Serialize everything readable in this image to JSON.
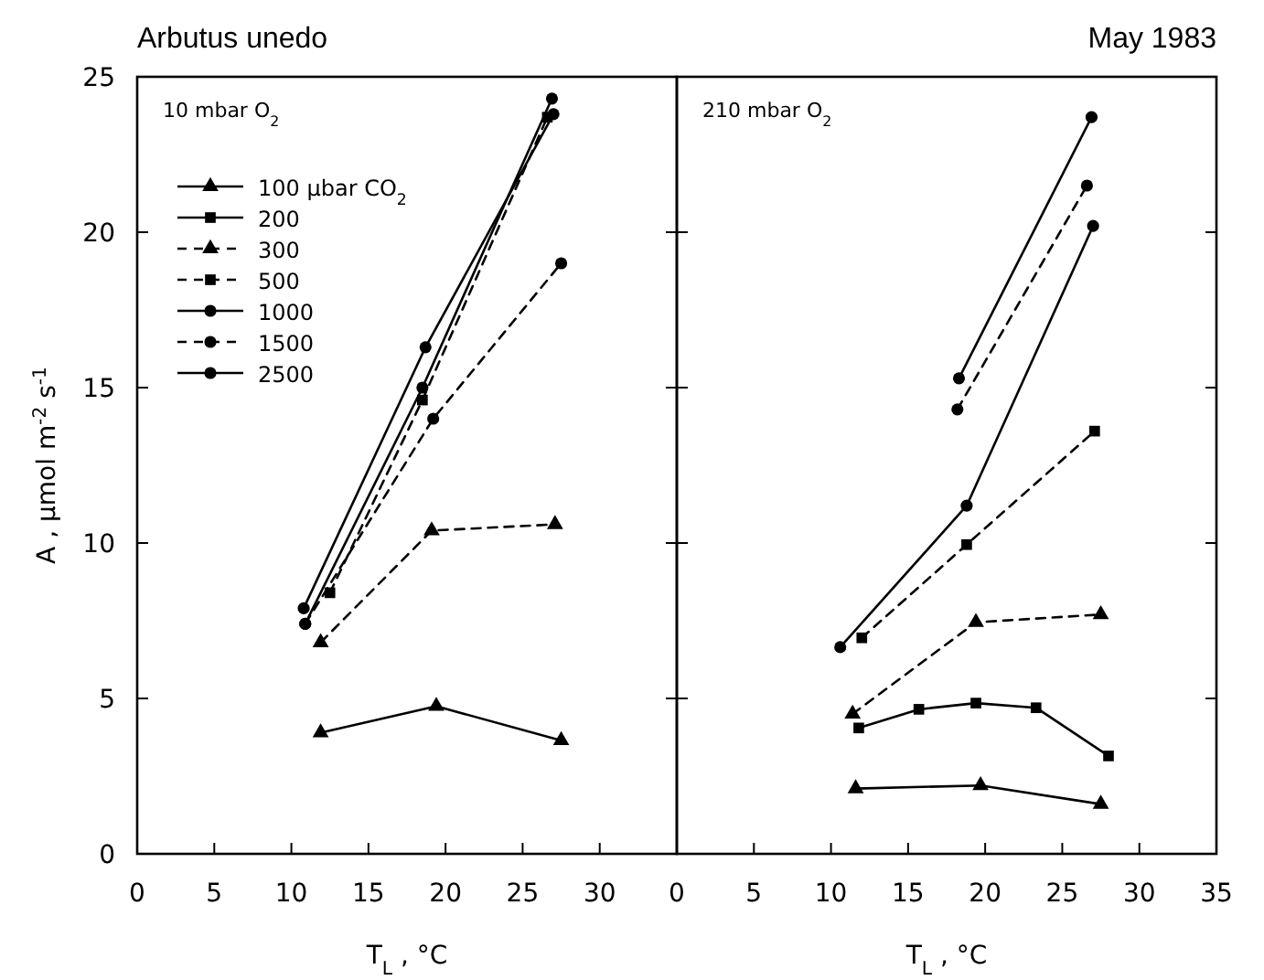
{
  "chart_data": [
    {
      "type": "line",
      "title": "Arbutus unedo",
      "xlabel": "T$_{L}$ , °C",
      "ylabel": "A ,  µmol m$^{-2}$ s$^{-1}$",
      "annotations": [
        "10 mbar O$_{2}$"
      ],
      "xlim": [
        0,
        35
      ],
      "xticks": [
        0,
        5,
        10,
        15,
        20,
        25,
        30
      ],
      "ylim": [
        0,
        25
      ],
      "yticks": [
        0,
        5,
        10,
        15,
        20,
        25
      ],
      "grid": false,
      "legend": "top left",
      "series": [
        {
          "name": "100 µbar CO$_{2}$",
          "color": "#000000",
          "marker": "triangle",
          "line_style": "solid",
          "x": [
            11.9,
            19.4,
            27.5
          ],
          "values": [
            3.9,
            4.75,
            3.65
          ]
        },
        {
          "name": "200",
          "color": "#000000",
          "marker": "square",
          "line_style": "solid"
        },
        {
          "name": "300",
          "color": "#000000",
          "marker": "triangle",
          "line_style": "dashed",
          "x": [
            11.9,
            19.1,
            27.1
          ],
          "values": [
            6.8,
            10.4,
            10.6
          ]
        },
        {
          "name": "500",
          "color": "#000000",
          "marker": "square",
          "line_style": "dashed",
          "x": [
            12.5,
            18.5,
            26.6
          ],
          "values": [
            8.4,
            14.6,
            23.7
          ]
        },
        {
          "name": "1000",
          "color": "#000000",
          "marker": "circle",
          "line_style": "solid",
          "x": [
            10.8,
            18.7,
            27.0
          ],
          "values": [
            7.9,
            16.3,
            23.8
          ]
        },
        {
          "name": "1500",
          "color": "#000000",
          "marker": "circle",
          "line_style": "dashed",
          "x": [
            10.9,
            19.2,
            27.5
          ],
          "values": [
            7.4,
            14.0,
            19.0
          ]
        },
        {
          "name": "2500",
          "color": "#000000",
          "marker": "circle",
          "line_style": "solid",
          "x": [
            10.9,
            18.5,
            26.9
          ],
          "values": [
            7.4,
            15.0,
            24.3
          ]
        }
      ]
    },
    {
      "type": "line",
      "title": "May 1983",
      "xlabel": "T$_{L}$ , °C",
      "annotations": [
        "210 mbar O$_{2}$"
      ],
      "xlim": [
        0,
        35
      ],
      "xticks": [
        0,
        5,
        10,
        15,
        20,
        25,
        30,
        35
      ],
      "ylim": [
        0,
        25
      ],
      "yticks": [
        0,
        5,
        10,
        15,
        20,
        25
      ],
      "tick_labels": "x",
      "grid": false,
      "series": [
        {
          "color": "#000000",
          "marker": "triangle",
          "line_style": "solid",
          "x": [
            11.6,
            19.7,
            27.5
          ],
          "values": [
            2.1,
            2.2,
            1.6
          ]
        },
        {
          "color": "#000000",
          "marker": "square",
          "line_style": "solid",
          "x": [
            11.8,
            15.7,
            19.4,
            23.3,
            28.0
          ],
          "values": [
            4.05,
            4.65,
            4.85,
            4.7,
            3.15
          ]
        },
        {
          "color": "#000000",
          "marker": "triangle",
          "line_style": "dashed",
          "x": [
            11.4,
            19.4,
            27.5
          ],
          "values": [
            4.5,
            7.45,
            7.7
          ]
        },
        {
          "color": "#000000",
          "marker": "square",
          "line_style": "dashed",
          "x": [
            12.0,
            18.8,
            27.1
          ],
          "values": [
            6.95,
            9.95,
            13.6
          ]
        },
        {
          "color": "#000000",
          "marker": "circle",
          "line_style": "solid",
          "x": [
            10.6,
            18.8,
            27.0
          ],
          "values": [
            6.65,
            11.2,
            20.2
          ]
        },
        {
          "color": "#000000",
          "marker": "circle",
          "line_style": "dashed",
          "x": [
            18.2,
            26.6
          ],
          "values": [
            14.3,
            21.5
          ]
        },
        {
          "color": "#000000",
          "marker": "circle",
          "line_style": "solid",
          "x": [
            18.3,
            26.9
          ],
          "values": [
            15.3,
            23.7
          ]
        }
      ]
    }
  ]
}
